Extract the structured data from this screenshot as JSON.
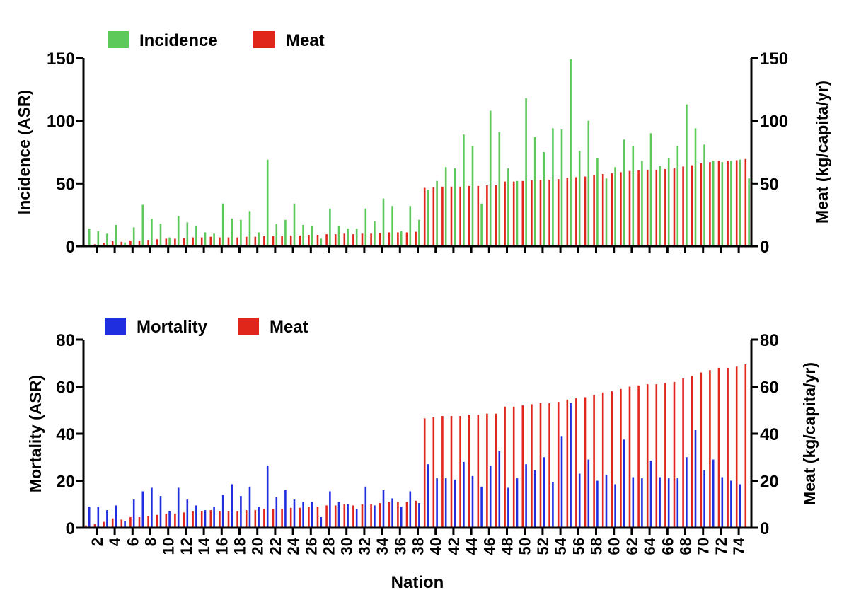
{
  "chart_data": [
    {
      "type": "bar",
      "panel": "top",
      "legend": [
        "Incidence",
        "Meat"
      ],
      "legend_placement": "top-left",
      "ylabel_left": "Incidence (ASR)",
      "ylabel_right": "Meat (kg/capita/yr)",
      "ylim_left": [
        0,
        150
      ],
      "ylim_right": [
        0,
        150
      ],
      "yticks_left": [
        "150",
        "100",
        "50",
        "0"
      ],
      "yticks_right": [
        "150",
        "100",
        "50",
        "0"
      ],
      "grid": false,
      "colors": {
        "Incidence": "#5cc95a",
        "Meat": "#e0251b"
      },
      "series": [
        {
          "name": "Incidence",
          "axis": "left",
          "values": [
            14,
            12,
            10,
            17,
            3,
            15,
            33,
            22,
            18,
            7,
            24,
            19,
            16,
            11,
            10,
            34,
            22,
            21,
            28,
            11,
            69,
            18,
            21,
            34,
            17,
            16,
            6,
            30,
            16,
            14,
            14,
            30,
            20,
            38,
            32,
            12,
            32,
            21,
            45,
            52,
            63,
            62,
            89,
            80,
            34,
            108,
            91,
            62,
            52,
            118,
            87,
            75,
            94,
            93,
            149,
            76,
            100,
            70,
            54,
            63,
            85,
            80,
            68,
            90,
            64,
            70,
            80,
            113,
            94,
            81,
            68,
            67,
            68,
            69,
            54
          ]
        },
        {
          "name": "Meat",
          "axis": "right",
          "values": [
            1,
            1.5,
            2.5,
            4,
            3.5,
            4.5,
            4.5,
            5,
            5.5,
            6,
            6,
            6.5,
            7,
            7,
            7.5,
            7,
            7,
            7,
            7.5,
            7.5,
            8,
            8,
            8,
            8.5,
            8.5,
            9,
            9,
            9.5,
            9.5,
            10,
            9.5,
            10,
            10,
            10.5,
            11,
            11,
            11,
            11.5,
            46.5,
            47,
            47.5,
            47.5,
            47.5,
            48,
            48,
            48.5,
            48.5,
            51.5,
            51.5,
            52,
            52.5,
            53,
            53,
            53.5,
            54.5,
            55,
            55.5,
            56.5,
            57.5,
            58,
            59,
            60,
            60.5,
            61,
            61,
            61.5,
            62,
            63.5,
            64.5,
            66,
            67,
            68,
            68,
            68.5,
            69.5
          ]
        }
      ]
    },
    {
      "type": "bar",
      "panel": "bottom",
      "legend": [
        "Mortality",
        "Meat"
      ],
      "legend_placement": "top-left",
      "xlabel": "Nation",
      "ylabel_left": "Mortality (ASR)",
      "ylabel_right": "Meat (kg/capita/yr)",
      "ylim_left": [
        0,
        80
      ],
      "ylim_right": [
        0,
        80
      ],
      "yticks_left": [
        "80",
        "60",
        "40",
        "20",
        "0"
      ],
      "yticks_right": [
        "80",
        "60",
        "40",
        "20",
        "0"
      ],
      "xticks": [
        "2",
        "4",
        "6",
        "8",
        "10",
        "12",
        "14",
        "16",
        "18",
        "20",
        "22",
        "24",
        "26",
        "28",
        "30",
        "32",
        "34",
        "36",
        "38",
        "40",
        "42",
        "44",
        "46",
        "48",
        "50",
        "52",
        "54",
        "56",
        "58",
        "60",
        "62",
        "64",
        "66",
        "68",
        "70",
        "72",
        "74"
      ],
      "grid": false,
      "colors": {
        "Mortality": "#1f2fe0",
        "Meat": "#e0251b"
      },
      "series": [
        {
          "name": "Mortality",
          "axis": "left",
          "values": [
            9,
            9,
            7.5,
            9.5,
            3,
            12,
            15.5,
            17,
            13.5,
            7,
            17,
            12,
            9.5,
            7.5,
            9,
            14,
            18.5,
            13.5,
            17.5,
            9,
            26.5,
            13,
            16,
            12,
            11,
            11,
            4.5,
            15.5,
            11,
            10,
            8,
            17.5,
            9.5,
            16,
            12.5,
            9,
            15.5,
            10.5,
            27,
            21,
            21,
            20.5,
            28,
            22,
            17.5,
            26.5,
            32.5,
            17,
            21,
            27,
            24.5,
            30,
            19.5,
            39,
            53,
            23,
            29,
            20,
            22.5,
            18.5,
            37.5,
            21.5,
            21,
            28.5,
            21.5,
            21,
            21,
            30,
            41.5,
            24.5,
            29,
            21.5,
            20,
            18.5,
            null
          ]
        },
        {
          "name": "Meat",
          "axis": "right",
          "values": [
            1,
            1.5,
            2.5,
            4,
            3.5,
            4.5,
            4.5,
            5,
            5.5,
            6,
            6,
            6.5,
            7,
            7,
            7.5,
            7,
            7,
            7,
            7.5,
            7.5,
            8,
            8,
            8,
            8.5,
            8.5,
            9,
            9,
            9.5,
            9.5,
            10,
            9.5,
            10,
            10,
            10.5,
            11,
            11,
            11,
            11.5,
            46.5,
            47,
            47.5,
            47.5,
            47.5,
            48,
            48,
            48.5,
            48.5,
            51.5,
            51.5,
            52,
            52.5,
            53,
            53,
            53.5,
            54.5,
            55,
            55.5,
            56.5,
            57.5,
            58,
            59,
            60,
            60.5,
            61,
            61,
            61.5,
            62,
            63.5,
            64.5,
            66,
            67,
            68,
            68,
            68.5,
            69.5
          ]
        }
      ]
    }
  ]
}
